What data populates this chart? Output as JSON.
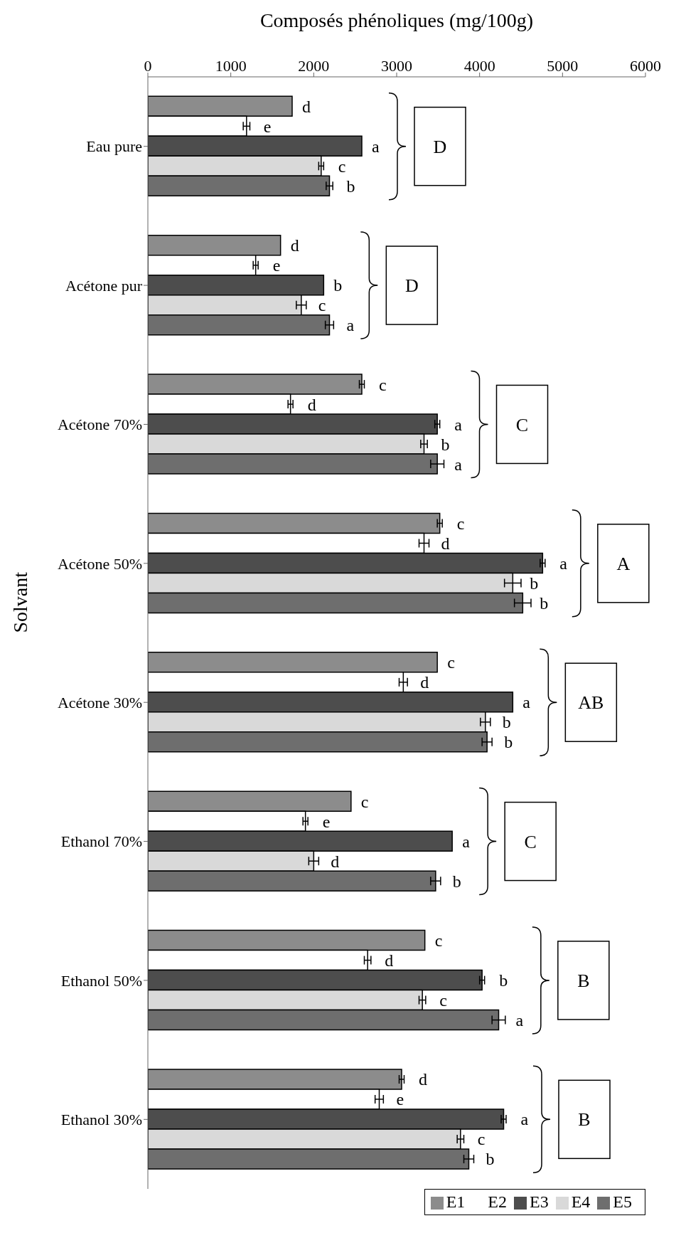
{
  "chart_data": {
    "type": "bar",
    "orientation": "horizontal",
    "xlabel": "Composés phénoliques (mg/100g)",
    "ylabel": "Solvant",
    "categories": [
      "Eau pure",
      "Acétone pur",
      "Acétone 70%",
      "Acétone 50%",
      "Acétone 30%",
      "Ethanol 70%",
      "Ethanol 50%",
      "Ethanol 30%"
    ],
    "xlim": [
      0,
      6000
    ],
    "xticks": [
      0,
      1000,
      2000,
      3000,
      4000,
      5000,
      6000
    ],
    "legend": "bottom right",
    "series": [
      {
        "name": "E1",
        "color": "#8c8c8c",
        "values": [
          1740,
          1600,
          2580,
          3520,
          3490,
          2450,
          3340,
          3060
        ],
        "errors": [
          null,
          null,
          30,
          30,
          null,
          null,
          null,
          30
        ],
        "value_labels": [
          "d",
          "d",
          "c",
          "c",
          "c",
          "c",
          "c",
          "d"
        ]
      },
      {
        "name": "E2",
        "color": "#ffffff",
        "values": [
          1190,
          1300,
          1720,
          3330,
          3080,
          1900,
          2650,
          2790
        ],
        "errors": [
          40,
          30,
          30,
          60,
          50,
          30,
          40,
          50
        ],
        "value_labels": [
          "e",
          "e",
          "d",
          "d",
          "d",
          "e",
          "d",
          "e"
        ]
      },
      {
        "name": "E3",
        "color": "#4d4d4d",
        "values": [
          2580,
          2120,
          3490,
          4760,
          4400,
          3670,
          4030,
          4290
        ],
        "errors": [
          null,
          null,
          30,
          30,
          null,
          null,
          30,
          30
        ],
        "value_labels": [
          "a",
          "b",
          "a",
          "a",
          "a",
          "a",
          "b",
          "a"
        ]
      },
      {
        "name": "E4",
        "color": "#d9d9d9",
        "values": [
          2090,
          1850,
          3330,
          4400,
          4070,
          2000,
          3310,
          3770
        ],
        "errors": [
          30,
          60,
          40,
          100,
          60,
          60,
          40,
          40
        ],
        "value_labels": [
          "c",
          "c",
          "b",
          "b",
          "b",
          "d",
          "c",
          "c"
        ]
      },
      {
        "name": "E5",
        "color": "#6e6e6e",
        "values": [
          2190,
          2190,
          3490,
          4520,
          4090,
          3470,
          4230,
          3870
        ],
        "errors": [
          40,
          50,
          80,
          100,
          60,
          60,
          80,
          60
        ],
        "value_labels": [
          "b",
          "a",
          "a",
          "b",
          "b",
          "b",
          "a",
          "b"
        ]
      }
    ],
    "annotations": [
      "D",
      "D",
      "C",
      "A",
      "AB",
      "C",
      "B",
      "B"
    ]
  }
}
